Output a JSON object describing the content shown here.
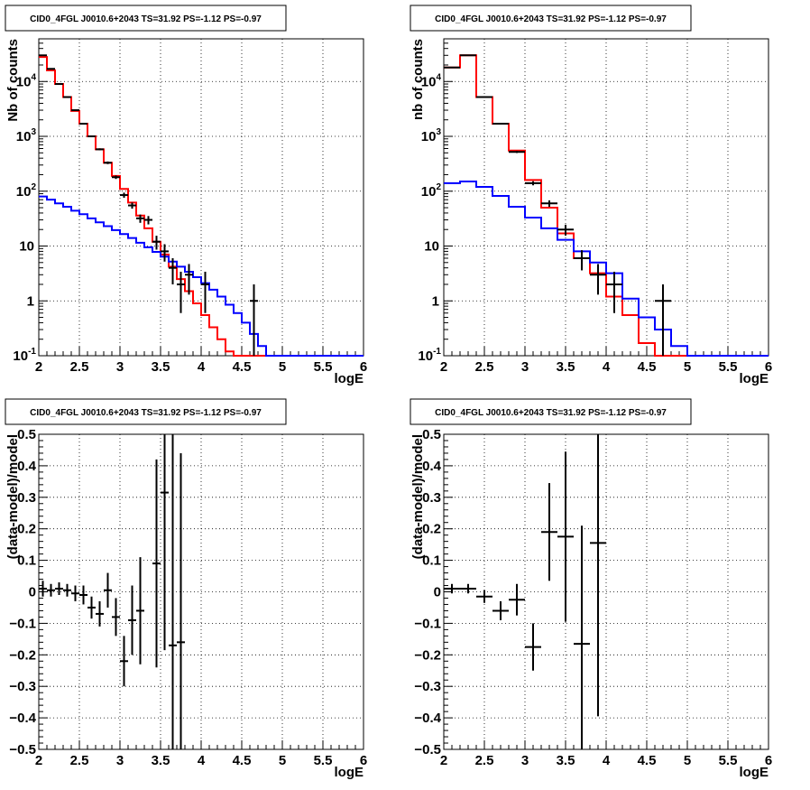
{
  "chart_data": [
    {
      "type": "line",
      "title": "CID0_4FGL J0010.6+2043 TS=31.92 PS=-1.12 PS=-0.97",
      "xlabel": "logE",
      "ylabel": "Nb of counts",
      "xlim": [
        2,
        6
      ],
      "ylim": [
        0.1,
        60000
      ],
      "log_y": true,
      "grid": true,
      "x_ticks": [
        "2",
        "2.5",
        "3",
        "3.5",
        "4",
        "4.5",
        "5",
        "5.5",
        "6"
      ],
      "y_ticks": [
        {
          "value": 0.1,
          "label": "10",
          "exp": "-1"
        },
        {
          "value": 1,
          "label": "1",
          "exp": ""
        },
        {
          "value": 10,
          "label": "10",
          "exp": ""
        },
        {
          "value": 100,
          "label": "10",
          "exp": "2"
        },
        {
          "value": 1000,
          "label": "10",
          "exp": "3"
        },
        {
          "value": 10000,
          "label": "10",
          "exp": "4"
        }
      ],
      "bin_edges": [
        2.0,
        2.1,
        2.2,
        2.3,
        2.4,
        2.5,
        2.6,
        2.7,
        2.8,
        2.9,
        3.0,
        3.1,
        3.2,
        3.3,
        3.4,
        3.5,
        3.6,
        3.7,
        3.8,
        3.9,
        4.0,
        4.1,
        4.2,
        4.3,
        4.4,
        4.5,
        4.6,
        4.7,
        4.8,
        4.9,
        5.0,
        5.1,
        5.2,
        5.3,
        5.4,
        5.5,
        5.6,
        5.7,
        5.8,
        5.9,
        6.0
      ],
      "series": [
        {
          "color": "#ff0000",
          "style": "step",
          "values": [
            28000,
            16000,
            9000,
            5200,
            2900,
            1700,
            1000,
            580,
            330,
            190,
            110,
            62,
            36,
            21,
            12,
            7,
            4.2,
            2.5,
            1.5,
            0.9,
            0.55,
            0.33,
            0.2,
            0.12,
            0.1,
            0.1,
            0.1,
            0.1,
            0.1,
            0.1,
            0.1,
            0.1,
            0.1,
            0.1,
            0.1,
            0.1,
            0.1,
            0.1,
            0.1,
            0.1
          ]
        },
        {
          "color": "#0000ff",
          "style": "step",
          "values": [
            80,
            70,
            60,
            52,
            44,
            38,
            32,
            27,
            23,
            19.5,
            16.5,
            14,
            11.5,
            9.5,
            7.8,
            6.4,
            5.2,
            4.2,
            3.4,
            2.7,
            2.1,
            1.6,
            1.2,
            0.85,
            0.6,
            0.4,
            0.25,
            0.15,
            0.1,
            0.1,
            0.1,
            0.1,
            0.1,
            0.1,
            0.1,
            0.1,
            0.1,
            0.1,
            0.1,
            0.1
          ]
        },
        {
          "color": "#000000",
          "style": "points",
          "points": [
            {
              "x": 2.05,
              "y": 30000,
              "lo": 29800,
              "hi": 30200
            },
            {
              "x": 2.15,
              "y": 17000,
              "lo": 16850,
              "hi": 17150
            },
            {
              "x": 2.25,
              "y": 9000,
              "lo": 8900,
              "hi": 9100
            },
            {
              "x": 2.35,
              "y": 5200,
              "lo": 5130,
              "hi": 5270
            },
            {
              "x": 2.45,
              "y": 3000,
              "lo": 2950,
              "hi": 3050
            },
            {
              "x": 2.55,
              "y": 1700,
              "lo": 1660,
              "hi": 1740
            },
            {
              "x": 2.65,
              "y": 1000,
              "lo": 970,
              "hi": 1030
            },
            {
              "x": 2.75,
              "y": 580,
              "lo": 556,
              "hi": 604
            },
            {
              "x": 2.85,
              "y": 330,
              "lo": 312,
              "hi": 348
            },
            {
              "x": 2.95,
              "y": 180,
              "lo": 167,
              "hi": 193
            },
            {
              "x": 3.05,
              "y": 85,
              "lo": 76,
              "hi": 94
            },
            {
              "x": 3.15,
              "y": 55,
              "lo": 48,
              "hi": 62
            },
            {
              "x": 3.25,
              "y": 32,
              "lo": 26.5,
              "hi": 37.5
            },
            {
              "x": 3.35,
              "y": 30,
              "lo": 24.8,
              "hi": 35.2
            },
            {
              "x": 3.45,
              "y": 12,
              "lo": 8.6,
              "hi": 15.4
            },
            {
              "x": 3.55,
              "y": 8,
              "lo": 5.2,
              "hi": 10.8
            },
            {
              "x": 3.65,
              "y": 4,
              "lo": 2.0,
              "hi": 6.0
            },
            {
              "x": 3.75,
              "y": 2,
              "lo": 0.6,
              "hi": 3.4
            },
            {
              "x": 3.85,
              "y": 3,
              "lo": 1.3,
              "hi": 4.7
            },
            {
              "x": 4.05,
              "y": 2,
              "lo": 0.6,
              "hi": 3.4
            },
            {
              "x": 4.65,
              "y": 1,
              "lo": 0.1,
              "hi": 2.0
            }
          ]
        }
      ]
    },
    {
      "type": "line",
      "title": "CID0_4FGL J0010.6+2043 TS=31.92 PS=-1.12 PS=-0.97",
      "xlabel": "logE",
      "ylabel": "nb of counts",
      "xlim": [
        2,
        6
      ],
      "ylim": [
        0.1,
        60000
      ],
      "log_y": true,
      "grid": true,
      "x_ticks": [
        "2",
        "2.5",
        "3",
        "3.5",
        "4",
        "4.5",
        "5",
        "5.5",
        "6"
      ],
      "y_ticks": [
        {
          "value": 0.1,
          "label": "10",
          "exp": "-1"
        },
        {
          "value": 1,
          "label": "1",
          "exp": ""
        },
        {
          "value": 10,
          "label": "10",
          "exp": ""
        },
        {
          "value": 100,
          "label": "10",
          "exp": "2"
        },
        {
          "value": 1000,
          "label": "10",
          "exp": "3"
        },
        {
          "value": 10000,
          "label": "10",
          "exp": "4"
        }
      ],
      "bin_edges": [
        2.0,
        2.2,
        2.4,
        2.6,
        2.8,
        3.0,
        3.2,
        3.4,
        3.6,
        3.8,
        4.0,
        4.2,
        4.4,
        4.6,
        4.8,
        5.0,
        5.2,
        5.4,
        5.6,
        5.8,
        6.0
      ],
      "series": [
        {
          "color": "#ff0000",
          "style": "step",
          "values": [
            18000,
            30000,
            5200,
            1700,
            550,
            160,
            50,
            17,
            6,
            3.2,
            1.2,
            0.55,
            0.17,
            0.1,
            0.1,
            0.1,
            0.1,
            0.1,
            0.1,
            0.1
          ]
        },
        {
          "color": "#0000ff",
          "style": "step",
          "values": [
            140,
            150,
            120,
            82,
            52,
            33,
            21,
            13,
            8,
            5,
            3.2,
            1.1,
            0.5,
            0.3,
            0.15,
            0.1,
            0.1,
            0.1,
            0.1,
            0.1
          ]
        },
        {
          "color": "#000000",
          "style": "points",
          "points": [
            {
              "x": 2.1,
              "y": 18000,
              "lo": 17870,
              "hi": 18130
            },
            {
              "x": 2.3,
              "y": 30000,
              "lo": 29830,
              "hi": 30170
            },
            {
              "x": 2.5,
              "y": 5200,
              "lo": 5130,
              "hi": 5270
            },
            {
              "x": 2.7,
              "y": 1700,
              "lo": 1660,
              "hi": 1740
            },
            {
              "x": 2.9,
              "y": 520,
              "lo": 497,
              "hi": 543
            },
            {
              "x": 3.1,
              "y": 140,
              "lo": 128,
              "hi": 152
            },
            {
              "x": 3.3,
              "y": 60,
              "lo": 52,
              "hi": 68
            },
            {
              "x": 3.5,
              "y": 20,
              "lo": 15.5,
              "hi": 24.5
            },
            {
              "x": 3.7,
              "y": 6,
              "lo": 3.6,
              "hi": 8.4
            },
            {
              "x": 3.9,
              "y": 3,
              "lo": 1.3,
              "hi": 4.7
            },
            {
              "x": 4.1,
              "y": 2,
              "lo": 0.6,
              "hi": 3.4
            },
            {
              "x": 4.7,
              "y": 1,
              "lo": 0.1,
              "hi": 2.0
            }
          ]
        }
      ]
    },
    {
      "type": "scatter",
      "title": "CID0_4FGL J0010.6+2043 TS=31.92 PS=-1.12 PS=-0.97",
      "xlabel": "logE",
      "ylabel": "(data-model)/model",
      "xlim": [
        2,
        6
      ],
      "ylim": [
        -0.5,
        0.5
      ],
      "grid": true,
      "x_ticks": [
        "2",
        "2.5",
        "3",
        "3.5",
        "4",
        "4.5",
        "5",
        "5.5",
        "6"
      ],
      "y_ticks": [
        "-0.5",
        "-0.4",
        "-0.3",
        "-0.2",
        "-0.1",
        "0",
        "0.1",
        "0.2",
        "0.3",
        "0.4",
        "0.5"
      ],
      "points": [
        {
          "x": 2.05,
          "y": 0.01,
          "err": 0.025
        },
        {
          "x": 2.15,
          "y": 0.005,
          "err": 0.02
        },
        {
          "x": 2.25,
          "y": 0.01,
          "err": 0.02
        },
        {
          "x": 2.35,
          "y": 0.005,
          "err": 0.02
        },
        {
          "x": 2.45,
          "y": -0.005,
          "err": 0.025
        },
        {
          "x": 2.55,
          "y": -0.01,
          "err": 0.03
        },
        {
          "x": 2.65,
          "y": -0.05,
          "err": 0.035
        },
        {
          "x": 2.75,
          "y": -0.07,
          "err": 0.04
        },
        {
          "x": 2.85,
          "y": 0.005,
          "err": 0.055
        },
        {
          "x": 2.95,
          "y": -0.08,
          "err": 0.06
        },
        {
          "x": 3.05,
          "y": -0.22,
          "err": 0.08
        },
        {
          "x": 3.15,
          "y": -0.09,
          "err": 0.11
        },
        {
          "x": 3.25,
          "y": -0.06,
          "err": 0.17
        },
        {
          "x": 3.45,
          "y": 0.09,
          "err": 0.33
        },
        {
          "x": 3.55,
          "y": 0.315,
          "err": 0.5
        },
        {
          "x": 3.65,
          "y": -0.17,
          "err": 0.8
        },
        {
          "x": 3.75,
          "y": -0.16,
          "err": 0.6
        }
      ]
    },
    {
      "type": "scatter",
      "title": "CID0_4FGL J0010.6+2043 TS=31.92 PS=-1.12 PS=-0.97",
      "xlabel": "logE",
      "ylabel": "(data-model)/model",
      "xlim": [
        2,
        6
      ],
      "ylim": [
        -0.5,
        0.5
      ],
      "grid": true,
      "x_ticks": [
        "2",
        "2.5",
        "3",
        "3.5",
        "4",
        "4.5",
        "5",
        "5.5",
        "6"
      ],
      "y_ticks": [
        "-0.5",
        "-0.4",
        "-0.3",
        "-0.2",
        "-0.1",
        "0",
        "0.1",
        "0.2",
        "0.3",
        "0.4",
        "0.5"
      ],
      "points": [
        {
          "x": 2.1,
          "y": 0.01,
          "err": 0.015
        },
        {
          "x": 2.3,
          "y": 0.01,
          "err": 0.015
        },
        {
          "x": 2.5,
          "y": -0.015,
          "err": 0.02
        },
        {
          "x": 2.7,
          "y": -0.06,
          "err": 0.03
        },
        {
          "x": 2.9,
          "y": -0.025,
          "err": 0.05
        },
        {
          "x": 3.1,
          "y": -0.175,
          "err": 0.075
        },
        {
          "x": 3.3,
          "y": 0.19,
          "err": 0.155
        },
        {
          "x": 3.5,
          "y": 0.175,
          "err": 0.27
        },
        {
          "x": 3.7,
          "y": -0.165,
          "err": 0.375
        },
        {
          "x": 3.9,
          "y": 0.155,
          "err": 0.55
        }
      ]
    }
  ]
}
